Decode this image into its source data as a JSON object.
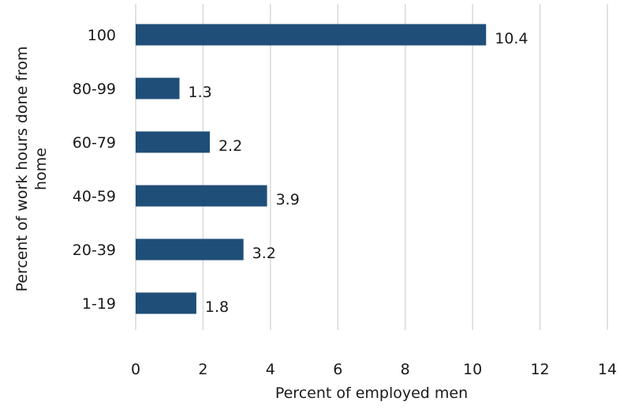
{
  "chart_data": {
    "type": "bar",
    "orientation": "horizontal",
    "categories": [
      "100",
      "80-99",
      "60-79",
      "40-59",
      "20-39",
      "1-19"
    ],
    "values": [
      10.4,
      1.3,
      2.2,
      3.9,
      3.2,
      1.8
    ],
    "data_labels": [
      "10.4",
      "1.3",
      "2.2",
      "3.9",
      "3.2",
      "1.8"
    ],
    "xlabel": "Percent of employed men",
    "ylabel": "Percent of work hours done from home",
    "xlim": [
      0,
      14
    ],
    "xticks": [
      0,
      2,
      4,
      6,
      8,
      10,
      12,
      14
    ],
    "grid": "vertical",
    "bar_color": "#1f4e79"
  }
}
